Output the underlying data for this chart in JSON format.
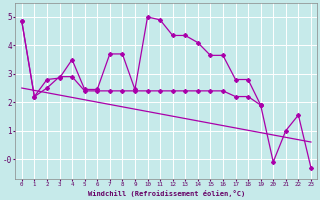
{
  "xlabel": "Windchill (Refroidissement éolien,°C)",
  "background_color": "#c6eaea",
  "grid_color": "#ffffff",
  "line_color": "#aa00aa",
  "xlim": [
    -0.5,
    23.5
  ],
  "ylim": [
    -0.7,
    5.5
  ],
  "ytick_vals": [
    0,
    1,
    2,
    3,
    4,
    5
  ],
  "ytick_labels": [
    "-0",
    "1",
    "2",
    "3",
    "4",
    "5"
  ],
  "xticks": [
    0,
    1,
    2,
    3,
    4,
    5,
    6,
    7,
    8,
    9,
    10,
    11,
    12,
    13,
    14,
    15,
    16,
    17,
    18,
    19,
    20,
    21,
    22,
    23
  ],
  "line1_x": [
    0,
    1,
    2,
    3,
    4,
    5,
    6,
    7,
    8,
    9,
    10,
    11,
    12,
    13,
    14,
    15,
    16,
    17,
    18,
    19
  ],
  "line1_y": [
    4.85,
    2.2,
    2.8,
    2.85,
    3.5,
    2.45,
    2.45,
    3.7,
    3.7,
    2.45,
    5.0,
    4.9,
    4.35,
    4.35,
    4.1,
    3.65,
    3.65,
    2.8,
    2.8,
    1.9
  ],
  "line2_x": [
    0,
    1,
    2,
    3,
    4,
    5,
    6,
    7,
    8,
    9,
    10,
    11,
    12,
    13,
    14,
    15,
    16,
    17,
    18,
    19
  ],
  "line2_y": [
    4.85,
    2.2,
    2.5,
    2.9,
    2.9,
    2.4,
    2.4,
    2.4,
    2.4,
    2.4,
    2.4,
    2.4,
    2.4,
    2.4,
    2.4,
    2.4,
    2.4,
    2.2,
    2.2,
    1.9
  ],
  "line3_x": [
    0,
    23
  ],
  "line3_y": [
    2.5,
    0.6
  ],
  "line4_x": [
    19,
    20,
    21,
    22,
    23
  ],
  "line4_y": [
    1.9,
    -0.1,
    1.0,
    1.55,
    -0.3
  ]
}
